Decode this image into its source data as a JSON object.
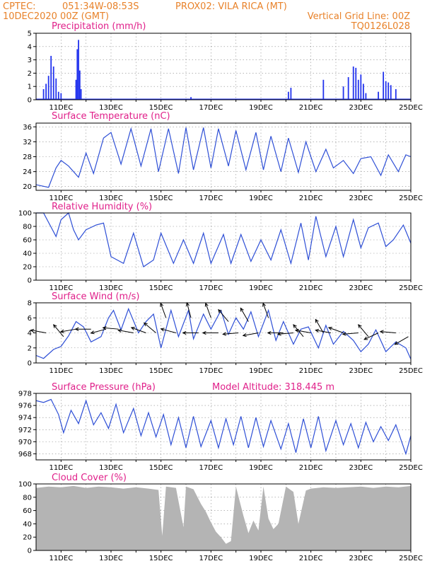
{
  "header": {
    "source": "CPTEC:",
    "coords": "051:34W-08:53S",
    "station": "PROX02: VILA RICA (MT)",
    "datetime": "10DEC2020 00Z (GMT)",
    "grid_note": "Vertical Grid Line: 00Z",
    "run_code": "TQ0126L028"
  },
  "x_axis": {
    "day_labels": [
      "11DEC",
      "13DEC",
      "15DEC",
      "17DEC",
      "19DEC",
      "21DEC",
      "23DEC",
      "25DEC"
    ],
    "day_range": [
      10,
      25
    ]
  },
  "colors": {
    "header": "#e8822a",
    "titles": "#e0208a",
    "line": "#2e4fd6",
    "bars": "#2233ee",
    "cloud": "#b4b4b4"
  },
  "chart_data": [
    {
      "type": "bar",
      "title": "Precipitation (mm/h)",
      "ylim": [
        0,
        5
      ],
      "yticks": [
        "0",
        "1",
        "2",
        "3",
        "4",
        "5"
      ],
      "x": [
        10.3,
        10.4,
        10.5,
        10.6,
        10.7,
        10.8,
        10.9,
        11.0,
        11.6,
        11.65,
        11.7,
        11.75,
        11.8,
        16.2,
        20.1,
        20.2,
        21.5,
        22.3,
        22.5,
        22.7,
        22.8,
        22.9,
        23.0,
        23.1,
        23.2,
        23.7,
        23.9,
        24.0,
        24.1,
        24.2,
        24.4
      ],
      "values": [
        0.8,
        1.2,
        1.8,
        3.3,
        2.5,
        1.6,
        0.6,
        0.5,
        1.5,
        3.8,
        4.5,
        2.2,
        0.8,
        0.2,
        0.6,
        0.9,
        1.5,
        1.0,
        1.7,
        2.5,
        2.4,
        1.5,
        1.9,
        1.2,
        0.5,
        0.6,
        2.1,
        1.4,
        1.3,
        1.1,
        0.8
      ]
    },
    {
      "type": "line",
      "title": "Surface Temperature (nC)",
      "ylim": [
        19,
        37
      ],
      "yticks": [
        "20",
        "24",
        "28",
        "32",
        "36"
      ],
      "x": [
        10.0,
        10.5,
        10.8,
        11.0,
        11.3,
        11.7,
        12.0,
        12.3,
        12.7,
        13.0,
        13.4,
        13.8,
        14.2,
        14.6,
        14.9,
        15.3,
        15.7,
        16.0,
        16.3,
        16.7,
        17.0,
        17.3,
        17.7,
        18.0,
        18.4,
        18.8,
        19.1,
        19.4,
        19.8,
        20.1,
        20.5,
        20.8,
        21.2,
        21.6,
        21.9,
        22.3,
        22.7,
        23.0,
        23.4,
        23.8,
        24.1,
        24.5,
        24.8,
        25.0
      ],
      "values": [
        20.5,
        19.8,
        25.0,
        27.0,
        25.5,
        22.5,
        29.0,
        23.5,
        33.0,
        34.5,
        26.0,
        35.5,
        25.5,
        35.5,
        24.0,
        35.5,
        23.5,
        35.8,
        24.5,
        35.8,
        25.0,
        35.5,
        25.5,
        35.0,
        24.5,
        34.5,
        24.5,
        33.5,
        24.0,
        33.0,
        23.8,
        32.0,
        24.0,
        30.0,
        25.0,
        27.0,
        23.5,
        27.5,
        28.0,
        23.0,
        28.5,
        24.0,
        28.5,
        28.0
      ]
    },
    {
      "type": "line",
      "title": "Relative Humidity (%)",
      "ylim": [
        0,
        100
      ],
      "yticks": [
        "0",
        "20",
        "40",
        "60",
        "80",
        "100"
      ],
      "x": [
        10.0,
        10.3,
        10.8,
        11.0,
        11.3,
        11.5,
        11.7,
        12.0,
        12.4,
        12.7,
        13.0,
        13.5,
        13.9,
        14.3,
        14.7,
        15.0,
        15.5,
        15.9,
        16.3,
        16.7,
        17.0,
        17.5,
        17.8,
        18.2,
        18.6,
        19.0,
        19.4,
        19.8,
        20.2,
        20.6,
        20.9,
        21.2,
        21.6,
        22.0,
        22.3,
        22.7,
        23.0,
        23.3,
        23.7,
        24.0,
        24.3,
        24.7,
        25.0
      ],
      "values": [
        100,
        100,
        65,
        90,
        100,
        75,
        60,
        75,
        82,
        85,
        35,
        25,
        70,
        20,
        30,
        70,
        25,
        60,
        25,
        70,
        25,
        68,
        25,
        68,
        28,
        60,
        30,
        75,
        25,
        85,
        30,
        95,
        35,
        80,
        35,
        90,
        48,
        78,
        85,
        50,
        60,
        82,
        55
      ]
    },
    {
      "type": "line",
      "title": "Surface Wind (m/s)",
      "ylim": [
        0,
        8
      ],
      "yticks": [
        "0",
        "2",
        "4",
        "6",
        "8"
      ],
      "x": [
        10.0,
        10.3,
        10.7,
        11.0,
        11.3,
        11.6,
        11.9,
        12.2,
        12.6,
        12.9,
        13.1,
        13.4,
        13.7,
        14.1,
        14.4,
        14.7,
        15.0,
        15.4,
        15.7,
        16.1,
        16.3,
        16.7,
        17.0,
        17.4,
        17.7,
        18.0,
        18.3,
        18.6,
        18.9,
        19.3,
        19.6,
        19.9,
        20.3,
        20.6,
        20.9,
        21.3,
        21.6,
        21.9,
        22.3,
        22.7,
        23.0,
        23.3,
        23.6,
        24.0,
        24.4,
        24.8,
        25.0
      ],
      "values": [
        1.0,
        0.6,
        1.8,
        2.2,
        3.6,
        5.5,
        4.8,
        2.8,
        3.5,
        6.0,
        7.0,
        4.4,
        7.2,
        4.0,
        5.5,
        6.5,
        2.0,
        7.0,
        3.5,
        7.0,
        3.2,
        6.5,
        4.5,
        7.0,
        3.8,
        6.0,
        4.5,
        6.8,
        3.5,
        7.0,
        3.0,
        5.5,
        2.5,
        4.5,
        4.8,
        2.0,
        5.0,
        2.5,
        4.2,
        3.0,
        1.5,
        2.5,
        4.4,
        1.5,
        2.8,
        2.0,
        0.5
      ]
    },
    {
      "type": "line",
      "title": "Surface Pressure (hPa)",
      "annotation": "Model Altitude: 318.445 m",
      "ylim": [
        967,
        978
      ],
      "yticks": [
        "968",
        "970",
        "972",
        "974",
        "976",
        "978"
      ],
      "x": [
        10.0,
        10.3,
        10.6,
        10.9,
        11.1,
        11.4,
        11.7,
        12.0,
        12.3,
        12.6,
        12.9,
        13.2,
        13.5,
        13.9,
        14.2,
        14.5,
        14.8,
        15.1,
        15.4,
        15.7,
        16.0,
        16.3,
        16.6,
        17.0,
        17.3,
        17.6,
        17.9,
        18.2,
        18.5,
        18.8,
        19.1,
        19.4,
        19.8,
        20.1,
        20.4,
        20.7,
        21.0,
        21.3,
        21.6,
        22.0,
        22.3,
        22.6,
        22.9,
        23.2,
        23.5,
        23.8,
        24.1,
        24.4,
        24.8,
        25.0
      ],
      "values": [
        976.8,
        976.5,
        977.0,
        974.5,
        971.5,
        975.2,
        973.0,
        976.8,
        972.8,
        974.8,
        972.2,
        976.2,
        971.5,
        975.5,
        971.0,
        974.8,
        970.8,
        974.5,
        969.5,
        974.0,
        969.0,
        974.2,
        969.2,
        973.5,
        969.0,
        973.8,
        969.5,
        974.2,
        969.0,
        974.0,
        969.2,
        973.5,
        968.8,
        973.0,
        968.2,
        973.8,
        969.0,
        974.2,
        968.5,
        973.5,
        969.5,
        973.0,
        969.0,
        973.2,
        970.0,
        972.5,
        970.2,
        972.8,
        968.0,
        971.0
      ]
    },
    {
      "type": "area",
      "title": "Cloud Cover (%)",
      "ylim": [
        0,
        100
      ],
      "yticks": [
        "0",
        "20",
        "40",
        "60",
        "80",
        "100"
      ],
      "x": [
        10.0,
        10.5,
        11.0,
        11.5,
        12.0,
        12.5,
        13.0,
        13.5,
        14.0,
        14.5,
        14.9,
        15.05,
        15.2,
        15.6,
        15.9,
        16.0,
        16.3,
        16.6,
        16.8,
        17.0,
        17.2,
        17.4,
        17.6,
        17.8,
        18.0,
        18.3,
        18.5,
        18.7,
        18.9,
        19.1,
        19.3,
        19.5,
        19.7,
        20.0,
        20.3,
        20.5,
        20.8,
        21.0,
        21.5,
        22.0,
        22.5,
        23.0,
        23.5,
        24.0,
        24.5,
        25.0
      ],
      "values": [
        94,
        96,
        95,
        97,
        94,
        96,
        95,
        93,
        95,
        93,
        91,
        22,
        96,
        94,
        35,
        96,
        92,
        70,
        58,
        42,
        28,
        20,
        10,
        14,
        96,
        52,
        26,
        45,
        30,
        96,
        48,
        32,
        40,
        96,
        88,
        40,
        90,
        93,
        95,
        94,
        95,
        96,
        94,
        96,
        95,
        97
      ]
    }
  ],
  "wind_vectors": [
    {
      "day": 10.4,
      "angle_deg": 190,
      "speed": 4.0
    },
    {
      "day": 11.1,
      "angle_deg": 230,
      "speed": 3.5
    },
    {
      "day": 11.6,
      "angle_deg": 170,
      "speed": 4.5
    },
    {
      "day": 12.2,
      "angle_deg": 180,
      "speed": 4.5
    },
    {
      "day": 12.8,
      "angle_deg": 165,
      "speed": 4.5
    },
    {
      "day": 13.3,
      "angle_deg": 185,
      "speed": 4.5
    },
    {
      "day": 13.9,
      "angle_deg": 190,
      "speed": 4.0
    },
    {
      "day": 14.4,
      "angle_deg": 200,
      "speed": 4.0
    },
    {
      "day": 14.8,
      "angle_deg": 220,
      "speed": 4.0
    },
    {
      "day": 15.2,
      "angle_deg": 250,
      "speed": 6.0
    },
    {
      "day": 15.6,
      "angle_deg": 195,
      "speed": 4.0
    },
    {
      "day": 16.2,
      "angle_deg": 255,
      "speed": 6.0
    },
    {
      "day": 16.5,
      "angle_deg": 180,
      "speed": 4.0
    },
    {
      "day": 17.0,
      "angle_deg": 250,
      "speed": 6.0
    },
    {
      "day": 17.3,
      "angle_deg": 180,
      "speed": 4.0
    },
    {
      "day": 17.7,
      "angle_deg": 230,
      "speed": 5.5
    },
    {
      "day": 18.1,
      "angle_deg": 175,
      "speed": 4.0
    },
    {
      "day": 18.5,
      "angle_deg": 240,
      "speed": 5.5
    },
    {
      "day": 18.9,
      "angle_deg": 170,
      "speed": 4.0
    },
    {
      "day": 19.3,
      "angle_deg": 250,
      "speed": 6.0
    },
    {
      "day": 19.9,
      "angle_deg": 180,
      "speed": 4.0
    },
    {
      "day": 20.3,
      "angle_deg": 175,
      "speed": 4.0
    },
    {
      "day": 20.7,
      "angle_deg": 230,
      "speed": 3.5
    },
    {
      "day": 21.0,
      "angle_deg": 190,
      "speed": 4.0
    },
    {
      "day": 21.5,
      "angle_deg": 240,
      "speed": 4.0
    },
    {
      "day": 21.8,
      "angle_deg": 190,
      "speed": 4.0
    },
    {
      "day": 22.3,
      "angle_deg": 200,
      "speed": 4.0
    },
    {
      "day": 22.9,
      "angle_deg": 175,
      "speed": 4.0
    },
    {
      "day": 23.3,
      "angle_deg": 230,
      "speed": 3.5
    },
    {
      "day": 23.7,
      "angle_deg": 155,
      "speed": 4.0
    },
    {
      "day": 24.4,
      "angle_deg": 185,
      "speed": 4.0
    },
    {
      "day": 24.9,
      "angle_deg": 150,
      "speed": 3.5
    }
  ]
}
